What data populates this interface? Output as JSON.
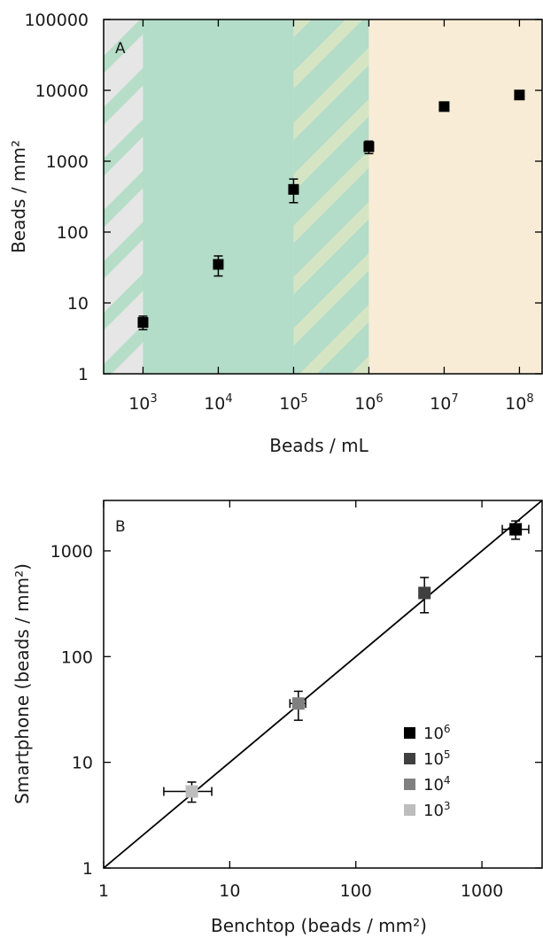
{
  "chart_data": [
    {
      "panel": "A",
      "type": "scatter",
      "title": "",
      "xlabel": "Beads / mL",
      "ylabel": "Beads / mm²",
      "xscale": "log",
      "yscale": "log",
      "xlim": [
        300,
        200000000
      ],
      "ylim": [
        1,
        100000
      ],
      "x_ticks": [
        1000,
        10000,
        100000,
        1000000,
        10000000,
        100000000
      ],
      "x_tick_labels": [
        {
          "base": "10",
          "exp": "3"
        },
        {
          "base": "10",
          "exp": "4"
        },
        {
          "base": "10",
          "exp": "5"
        },
        {
          "base": "10",
          "exp": "6"
        },
        {
          "base": "10",
          "exp": "7"
        },
        {
          "base": "10",
          "exp": "8"
        }
      ],
      "y_ticks": [
        1,
        10,
        100,
        1000,
        10000,
        100000
      ],
      "y_tick_labels": [
        "1",
        "10",
        "100",
        "1000",
        "10000",
        "100000"
      ],
      "grid": false,
      "background_regions": [
        {
          "x_from": 300,
          "x_to": 1000,
          "fill": "#e6e6e6",
          "hatched": true,
          "hatch_color": "#b5ddc8"
        },
        {
          "x_from": 1000,
          "x_to": 100000,
          "fill": "#b3dcc9",
          "hatched": false
        },
        {
          "x_from": 100000,
          "x_to": 1000000,
          "fill": "#b3dcc9",
          "hatched": true,
          "hatch_color": "#d5e5c4"
        },
        {
          "x_from": 1000000,
          "x_to": 200000000,
          "fill": "#f8ecd7",
          "hatched": false
        }
      ],
      "series": [
        {
          "marker_color": "#000000",
          "points": [
            {
              "x": 1000,
              "y": 5.3,
              "y_err_low": 4.2,
              "y_err_high": 6.5
            },
            {
              "x": 10000,
              "y": 35,
              "y_err_low": 24,
              "y_err_high": 46
            },
            {
              "x": 100000,
              "y": 400,
              "y_err_low": 260,
              "y_err_high": 560
            },
            {
              "x": 1000000,
              "y": 1600,
              "y_err_low": 1280,
              "y_err_high": 1920
            },
            {
              "x": 10000000,
              "y": 5900,
              "y_err_low": 5500,
              "y_err_high": 6300
            },
            {
              "x": 100000000,
              "y": 8600,
              "y_err_low": 8100,
              "y_err_high": 9100
            }
          ]
        }
      ]
    },
    {
      "panel": "B",
      "type": "scatter",
      "title": "",
      "xlabel": "Benchtop (beads / mm²)",
      "ylabel": "Smartphone (beads / mm²)",
      "xscale": "log",
      "yscale": "log",
      "xlim": [
        1,
        3000
      ],
      "ylim": [
        1,
        3000
      ],
      "x_ticks": [
        1,
        10,
        100,
        1000
      ],
      "x_tick_labels": [
        "1",
        "10",
        "100",
        "1000"
      ],
      "y_ticks": [
        1,
        10,
        100,
        1000
      ],
      "y_tick_labels": [
        "1",
        "10",
        "100",
        "1000"
      ],
      "grid": false,
      "reference_line": {
        "from": [
          1,
          1
        ],
        "to": [
          3000,
          3000
        ],
        "description": "y = x"
      },
      "legend": {
        "placement": "right-middle",
        "entries": [
          {
            "base": "10",
            "exp": "6",
            "color": "#000000"
          },
          {
            "base": "10",
            "exp": "5",
            "color": "#404040"
          },
          {
            "base": "10",
            "exp": "4",
            "color": "#808080"
          },
          {
            "base": "10",
            "exp": "3",
            "color": "#bdbdbd"
          }
        ]
      },
      "series": [
        {
          "legend_index": 3,
          "color": "#bdbdbd",
          "x": 5,
          "y": 5.3,
          "x_err": [
            3,
            7.2
          ],
          "y_err": [
            4.2,
            6.5
          ]
        },
        {
          "legend_index": 2,
          "color": "#808080",
          "x": 35,
          "y": 36,
          "x_err": [
            30,
            40
          ],
          "y_err": [
            25,
            47
          ]
        },
        {
          "legend_index": 1,
          "color": "#404040",
          "x": 350,
          "y": 400,
          "x_err": [
            330,
            370
          ],
          "y_err": [
            260,
            560
          ]
        },
        {
          "legend_index": 0,
          "color": "#000000",
          "x": 1850,
          "y": 1600,
          "x_err": [
            1450,
            2350
          ],
          "y_err": [
            1290,
            1920
          ]
        }
      ]
    }
  ]
}
